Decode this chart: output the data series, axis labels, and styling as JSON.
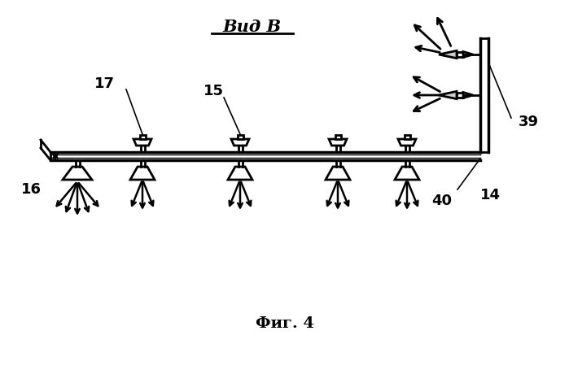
{
  "title": "Вид В",
  "caption": "Фиг. 4",
  "bg_color": "#ffffff",
  "line_color": "#000000",
  "label_14": "14",
  "label_15": "15",
  "label_16": "16",
  "label_17": "17",
  "label_39": "39",
  "label_40": "40"
}
